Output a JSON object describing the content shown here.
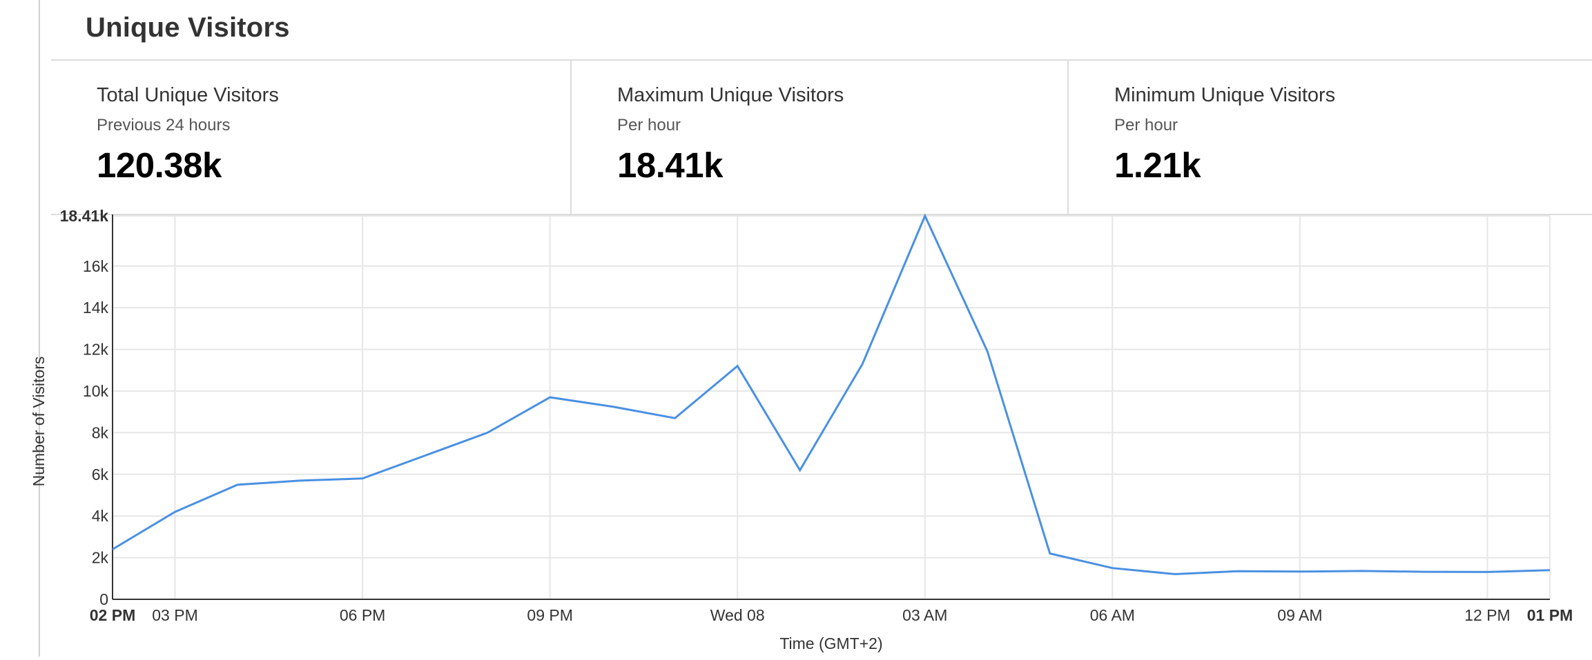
{
  "page": {
    "title": "Unique Visitors"
  },
  "stats": [
    {
      "label": "Total Unique Visitors",
      "sublabel": "Previous 24 hours",
      "value": "120.38k"
    },
    {
      "label": "Maximum Unique Visitors",
      "sublabel": "Per hour",
      "value": "18.41k"
    },
    {
      "label": "Minimum Unique Visitors",
      "sublabel": "Per hour",
      "value": "1.21k"
    }
  ],
  "colors": {
    "line": "#4a90e2",
    "grid": "#e6e6e6",
    "axis": "#333333"
  },
  "chart_data": {
    "type": "line",
    "xlabel": "Time (GMT+2)",
    "ylabel": "Number of Visitors",
    "ylim": [
      0,
      18410
    ],
    "grid": true,
    "yticks": [
      {
        "value": 0,
        "label": "0"
      },
      {
        "value": 2000,
        "label": "2k"
      },
      {
        "value": 4000,
        "label": "4k"
      },
      {
        "value": 6000,
        "label": "6k"
      },
      {
        "value": 8000,
        "label": "8k"
      },
      {
        "value": 10000,
        "label": "10k"
      },
      {
        "value": 12000,
        "label": "12k"
      },
      {
        "value": 14000,
        "label": "14k"
      },
      {
        "value": 16000,
        "label": "16k"
      },
      {
        "value": 18410,
        "label": "18.41k",
        "bold": true
      }
    ],
    "xticks": [
      {
        "value": "14:00",
        "label": "02 PM",
        "bold": true
      },
      {
        "value": "15:00",
        "label": "03 PM"
      },
      {
        "value": "18:00",
        "label": "06 PM"
      },
      {
        "value": "21:00",
        "label": "09 PM"
      },
      {
        "value": "00:00",
        "label": "Wed 08"
      },
      {
        "value": "03:00",
        "label": "03 AM"
      },
      {
        "value": "06:00",
        "label": "06 AM"
      },
      {
        "value": "09:00",
        "label": "09 AM"
      },
      {
        "value": "12:00",
        "label": "12 PM"
      },
      {
        "value": "13:00",
        "label": "01 PM",
        "bold": true
      }
    ],
    "series": [
      {
        "x": [
          "14:00",
          "15:00",
          "16:00",
          "17:00",
          "18:00",
          "19:00",
          "20:00",
          "21:00",
          "22:00",
          "23:00",
          "00:00",
          "01:00",
          "02:00",
          "03:00",
          "04:00",
          "05:00",
          "06:00",
          "07:00",
          "08:00",
          "09:00",
          "10:00",
          "11:00",
          "12:00",
          "13:00"
        ],
        "values": [
          2400,
          4200,
          5500,
          5700,
          5800,
          6900,
          8000,
          9700,
          9250,
          8700,
          11200,
          6200,
          11300,
          18410,
          11900,
          2200,
          1500,
          1210,
          1350,
          1330,
          1360,
          1320,
          1310,
          1400
        ]
      }
    ]
  }
}
